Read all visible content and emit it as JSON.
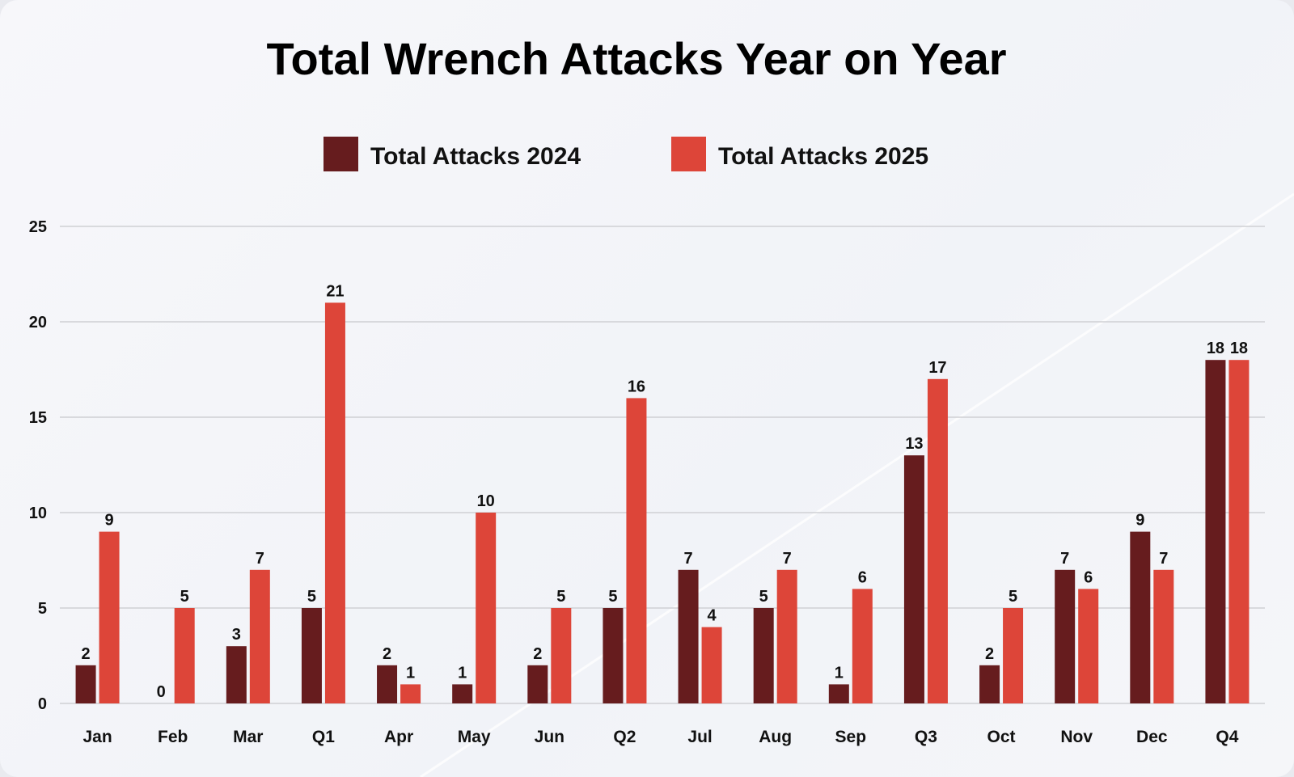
{
  "chart_data": {
    "type": "bar",
    "title": "Total Wrench Attacks Year on Year",
    "xlabel": "",
    "ylabel": "",
    "ylim": [
      0,
      25
    ],
    "yticks": [
      0,
      5,
      10,
      15,
      20,
      25
    ],
    "grid": true,
    "legend_position": "top-center",
    "categories": [
      "Jan",
      "Feb",
      "Mar",
      "Q1",
      "Apr",
      "May",
      "Jun",
      "Q2",
      "Jul",
      "Aug",
      "Sep",
      "Q3",
      "Oct",
      "Nov",
      "Dec",
      "Q4"
    ],
    "series": [
      {
        "name": "Total Attacks 2024",
        "color": "#661c1e",
        "values": [
          2,
          0,
          3,
          5,
          2,
          1,
          2,
          5,
          7,
          5,
          1,
          13,
          2,
          7,
          9,
          18
        ]
      },
      {
        "name": "Total Attacks 2025",
        "color": "#dd4539",
        "values": [
          9,
          5,
          7,
          21,
          1,
          10,
          5,
          16,
          4,
          7,
          6,
          17,
          5,
          6,
          7,
          18
        ]
      }
    ]
  }
}
